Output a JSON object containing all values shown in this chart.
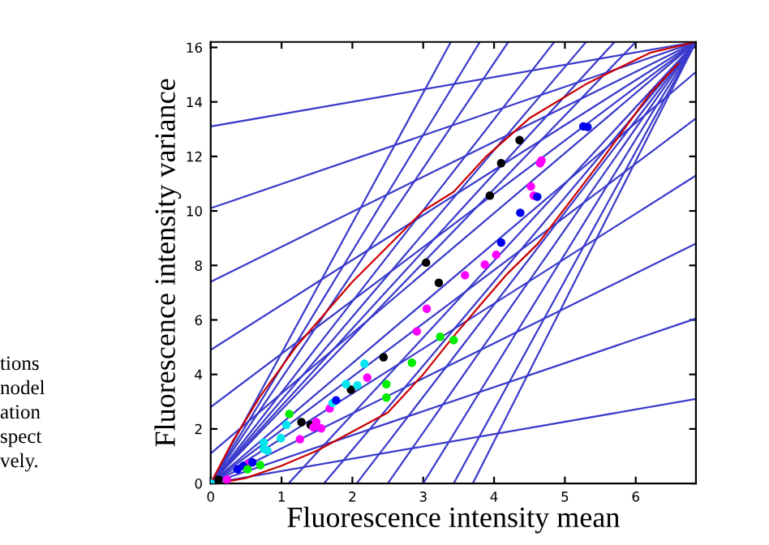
{
  "chart_data": {
    "type": "scatter",
    "xlabel": "Fluorescence intensity mean",
    "ylabel": "Fluorescence intensity variance",
    "xlim": [
      0,
      6.85
    ],
    "ylim": [
      0,
      16.2
    ],
    "xticks": [
      0,
      1,
      2,
      3,
      4,
      5,
      6
    ],
    "yticks": [
      0,
      2,
      4,
      6,
      8,
      10,
      12,
      14,
      16
    ],
    "grid": false,
    "legend": false,
    "line_style": "solid",
    "annotations": [
      "tions",
      "nodel",
      "ation",
      "spect",
      "vely."
    ],
    "series": [
      {
        "type": "line",
        "color": "#3a3acc",
        "x": [
          0,
          6.85
        ],
        "values": [
          13.1,
          16.2
        ]
      },
      {
        "type": "line",
        "color": "#3a3acc",
        "x": [
          0,
          6.85
        ],
        "values": [
          10.1,
          16.2
        ]
      },
      {
        "type": "line",
        "color": "#3a3acc",
        "x": [
          0,
          6.85
        ],
        "values": [
          7.4,
          16.2
        ]
      },
      {
        "type": "line",
        "color": "#3a3acc",
        "x": [
          0,
          6.85
        ],
        "values": [
          4.9,
          16.2
        ]
      },
      {
        "type": "line",
        "color": "#3a3acc",
        "x": [
          0,
          6.85
        ],
        "values": [
          2.8,
          16.2
        ]
      },
      {
        "type": "line",
        "color": "#3a3acc",
        "x": [
          0,
          6.85
        ],
        "values": [
          1.1,
          16.2
        ]
      },
      {
        "type": "line",
        "color": "#3a3acc",
        "x": [
          1.1,
          6.85
        ],
        "values": [
          0,
          16.2
        ]
      },
      {
        "type": "line",
        "color": "#3a3acc",
        "x": [
          1.6,
          6.85
        ],
        "values": [
          0,
          16.2
        ]
      },
      {
        "type": "line",
        "color": "#3a3acc",
        "x": [
          2.06,
          6.85
        ],
        "values": [
          0,
          16.2
        ]
      },
      {
        "type": "line",
        "color": "#3a3acc",
        "x": [
          2.5,
          6.85
        ],
        "values": [
          0,
          16.2
        ]
      },
      {
        "type": "line",
        "color": "#3a3acc",
        "x": [
          3.0,
          6.85
        ],
        "values": [
          0,
          16.2
        ]
      },
      {
        "type": "line",
        "color": "#3a3acc",
        "x": [
          3.43,
          6.85
        ],
        "values": [
          0,
          16.2
        ]
      },
      {
        "type": "line",
        "color": "#3a3acc",
        "x": [
          3.7,
          6.85
        ],
        "values": [
          0,
          16.2
        ]
      },
      {
        "type": "line",
        "color": "#3a3acc",
        "x": [
          0,
          3.39
        ],
        "values": [
          0,
          16.2
        ]
      },
      {
        "type": "line",
        "color": "#3a3acc",
        "x": [
          0,
          3.8
        ],
        "values": [
          0,
          16.2
        ]
      },
      {
        "type": "line",
        "color": "#3a3acc",
        "x": [
          0,
          4.2
        ],
        "values": [
          0,
          16.2
        ]
      },
      {
        "type": "line",
        "color": "#3a3acc",
        "x": [
          0,
          4.85
        ],
        "values": [
          0,
          16.2
        ]
      },
      {
        "type": "line",
        "color": "#3a3acc",
        "x": [
          0,
          5.3
        ],
        "values": [
          0,
          16.2
        ]
      },
      {
        "type": "line",
        "color": "#3a3acc",
        "x": [
          0,
          5.7
        ],
        "values": [
          0,
          16.2
        ]
      },
      {
        "type": "line",
        "color": "#3a3acc",
        "x": [
          0,
          6.0
        ],
        "values": [
          0,
          16.2
        ]
      },
      {
        "type": "line",
        "color": "#3a3acc",
        "x": [
          0,
          6.85
        ],
        "values": [
          0,
          15.1
        ]
      },
      {
        "type": "line",
        "color": "#3a3acc",
        "x": [
          0,
          6.85
        ],
        "values": [
          0,
          13.4
        ]
      },
      {
        "type": "line",
        "color": "#3a3acc",
        "x": [
          0,
          6.85
        ],
        "values": [
          0,
          11.3
        ]
      },
      {
        "type": "line",
        "color": "#3a3acc",
        "x": [
          0,
          6.85
        ],
        "values": [
          0,
          8.8
        ]
      },
      {
        "type": "line",
        "color": "#3a3acc",
        "x": [
          0,
          6.85
        ],
        "values": [
          0,
          6.05
        ]
      },
      {
        "type": "line",
        "color": "#3a3acc",
        "x": [
          0,
          6.85
        ],
        "values": [
          0,
          3.1
        ]
      },
      {
        "type": "line",
        "color": "#cc0000",
        "x": [
          0,
          0.3,
          0.7,
          1.2,
          2,
          3,
          3.43,
          3.89,
          4.5,
          5.33,
          6.2,
          6.85
        ],
        "values": [
          0,
          1.5,
          3.2,
          5.0,
          7.4,
          10.0,
          10.7,
          12.0,
          13.4,
          14.7,
          15.8,
          16.2
        ]
      },
      {
        "type": "line",
        "color": "#cc0000",
        "x": [
          0.25,
          0.5,
          1,
          1.5,
          2,
          2.5,
          3,
          3.43,
          3.89,
          4.19,
          4.62,
          5.5,
          6.2,
          6.6
        ],
        "values": [
          0.08,
          0.2,
          0.65,
          1.2,
          1.9,
          2.6,
          4.0,
          5.4,
          6.8,
          7.7,
          8.8,
          11.8,
          14.3,
          15.4
        ]
      },
      {
        "color": "#000000",
        "x": [
          0.11,
          1.28,
          1.41,
          1.98,
          2.44,
          3.04,
          3.22,
          3.94,
          4.1,
          4.36
        ],
        "values": [
          0.14,
          2.25,
          2.15,
          3.44,
          4.63,
          8.1,
          7.36,
          10.56,
          11.75,
          12.6
        ]
      },
      {
        "color": "#ff00ff",
        "x": [
          0.23,
          0.53,
          1.26,
          1.45,
          1.49,
          1.56,
          1.68,
          2.21,
          2.91,
          3.05,
          3.59,
          3.87,
          4.03,
          4.52,
          4.56,
          4.65,
          4.67
        ],
        "values": [
          0.14,
          0.71,
          1.62,
          2.06,
          2.25,
          2.02,
          2.75,
          3.88,
          5.58,
          6.41,
          7.64,
          8.03,
          8.39,
          10.9,
          10.56,
          11.75,
          11.85
        ]
      },
      {
        "color": "#00e5ee",
        "x": [
          0,
          0.75,
          0.75,
          0.8,
          0.99,
          1.07,
          1.72,
          1.91,
          2.07,
          2.17
        ],
        "values": [
          0,
          1.5,
          1.27,
          1.2,
          1.66,
          2.15,
          2.95,
          3.64,
          3.6,
          4.39
        ]
      },
      {
        "color": "#0000ee",
        "x": [
          0.38,
          0.46,
          0.59,
          1.77,
          4.1,
          4.37,
          4.61,
          5.26,
          5.32
        ],
        "values": [
          0.52,
          0.64,
          0.77,
          3.05,
          8.84,
          9.93,
          10.52,
          13.1,
          13.08
        ]
      },
      {
        "color": "#00ee00",
        "x": [
          0.52,
          0.7,
          1.11,
          2.48,
          2.48,
          2.84,
          3.24,
          3.43
        ],
        "values": [
          0.52,
          0.67,
          2.55,
          3.64,
          3.15,
          4.43,
          5.38,
          5.26
        ]
      }
    ]
  }
}
